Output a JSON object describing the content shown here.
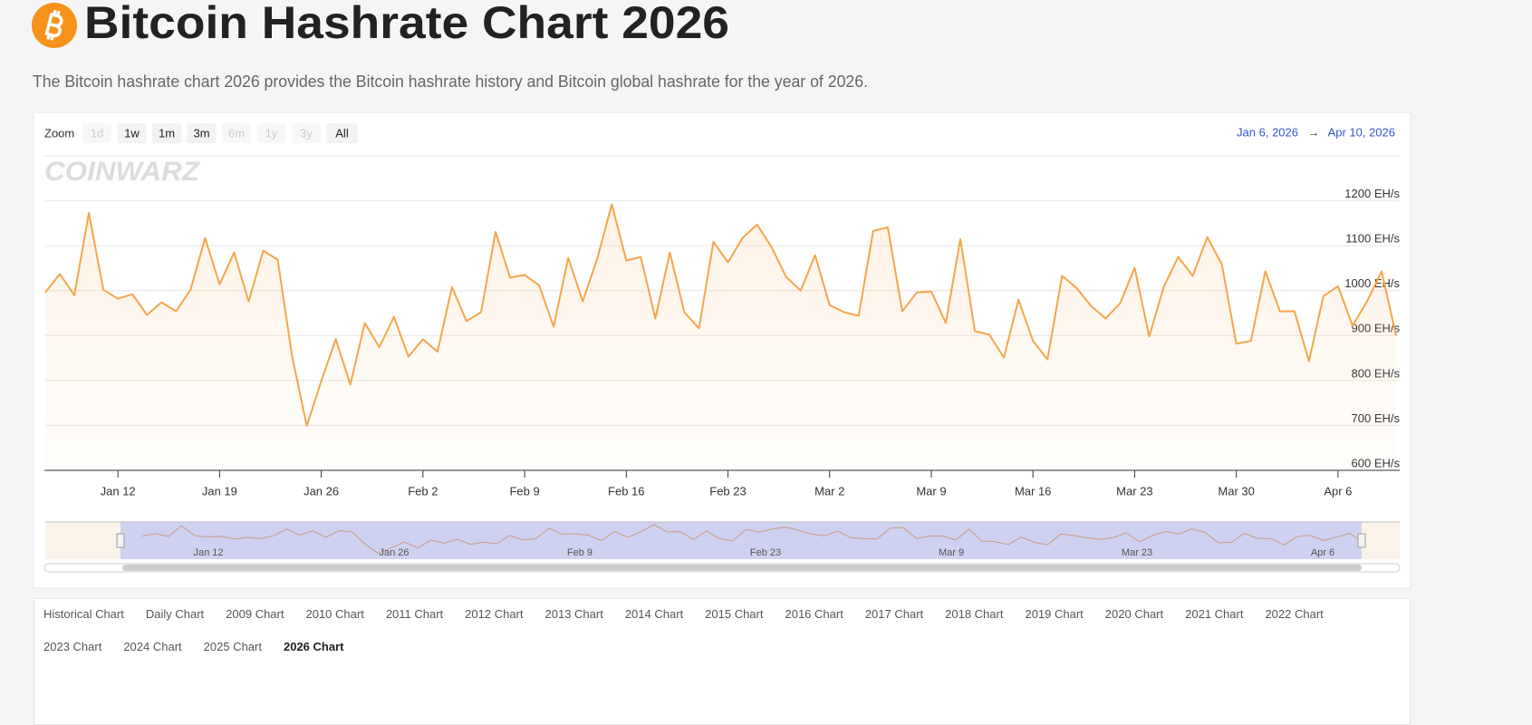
{
  "header": {
    "title": "Bitcoin Hashrate Chart 2026",
    "description": "The Bitcoin hashrate chart 2026 provides the Bitcoin hashrate history and Bitcoin global hashrate for the year of 2026."
  },
  "range_selector": {
    "label": "Zoom",
    "buttons": [
      {
        "label": "1d",
        "enabled": false
      },
      {
        "label": "1w",
        "enabled": true
      },
      {
        "label": "1m",
        "enabled": true
      },
      {
        "label": "3m",
        "enabled": true
      },
      {
        "label": "6m",
        "enabled": false
      },
      {
        "label": "1y",
        "enabled": false
      },
      {
        "label": "3y",
        "enabled": false
      },
      {
        "label": "All",
        "enabled": true
      }
    ],
    "from": "Jan 6, 2026",
    "arrow": "→",
    "to": "Apr 10, 2026"
  },
  "watermark": "COINWARZ",
  "chart_data": {
    "type": "line",
    "color": "#f5a54a",
    "x": [
      "2026-01-07",
      "2026-01-08",
      "2026-01-09",
      "2026-01-10",
      "2026-01-11",
      "2026-01-12",
      "2026-01-13",
      "2026-01-14",
      "2026-01-15",
      "2026-01-16",
      "2026-01-17",
      "2026-01-18",
      "2026-01-19",
      "2026-01-20",
      "2026-01-21",
      "2026-01-22",
      "2026-01-23",
      "2026-01-24",
      "2026-01-25",
      "2026-01-26",
      "2026-01-27",
      "2026-01-28",
      "2026-01-29",
      "2026-01-30",
      "2026-01-31",
      "2026-02-01",
      "2026-02-02",
      "2026-02-03",
      "2026-02-04",
      "2026-02-05",
      "2026-02-06",
      "2026-02-07",
      "2026-02-08",
      "2026-02-09",
      "2026-02-10",
      "2026-02-11",
      "2026-02-12",
      "2026-02-13",
      "2026-02-14",
      "2026-02-15",
      "2026-02-16",
      "2026-02-17",
      "2026-02-18",
      "2026-02-19",
      "2026-02-20",
      "2026-02-21",
      "2026-02-22",
      "2026-02-23",
      "2026-02-24",
      "2026-02-25",
      "2026-02-26",
      "2026-02-27",
      "2026-02-28",
      "2026-03-01",
      "2026-03-02",
      "2026-03-03",
      "2026-03-04",
      "2026-03-05",
      "2026-03-06",
      "2026-03-07",
      "2026-03-08",
      "2026-03-09",
      "2026-03-10",
      "2026-03-11",
      "2026-03-12",
      "2026-03-13",
      "2026-03-14",
      "2026-03-15",
      "2026-03-16",
      "2026-03-17",
      "2026-03-18",
      "2026-03-19",
      "2026-03-20",
      "2026-03-21",
      "2026-03-22",
      "2026-03-23",
      "2026-03-24",
      "2026-03-25",
      "2026-03-26",
      "2026-03-27",
      "2026-03-28",
      "2026-03-29",
      "2026-03-30",
      "2026-03-31",
      "2026-04-01",
      "2026-04-02",
      "2026-04-03",
      "2026-04-04",
      "2026-04-05",
      "2026-04-06",
      "2026-04-07",
      "2026-04-08",
      "2026-04-09",
      "2026-04-10"
    ],
    "values": [
      996,
      1037,
      990,
      1173,
      1002,
      982,
      992,
      946,
      974,
      954,
      1002,
      1117,
      1014,
      1085,
      976,
      1089,
      1069,
      853,
      699,
      799,
      892,
      791,
      928,
      874,
      942,
      853,
      892,
      864,
      1008,
      932,
      952,
      1131,
      1029,
      1035,
      1012,
      920,
      1073,
      976,
      1071,
      1192,
      1067,
      1075,
      938,
      1085,
      952,
      916,
      1109,
      1063,
      1117,
      1147,
      1097,
      1031,
      1000,
      1079,
      968,
      952,
      944,
      1133,
      1141,
      954,
      996,
      998,
      928,
      1115,
      910,
      902,
      851,
      980,
      888,
      847,
      1033,
      1006,
      966,
      938,
      972,
      1051,
      898,
      1008,
      1075,
      1033,
      1119,
      1059,
      882,
      888,
      1043,
      954,
      954,
      843,
      988,
      1010,
      922,
      976,
      1043,
      900
    ],
    "xlim": [
      "2026-01-07",
      "2026-04-10"
    ],
    "xticks": [
      {
        "value": "2026-01-12",
        "label": "Jan 12"
      },
      {
        "value": "2026-01-19",
        "label": "Jan 19"
      },
      {
        "value": "2026-01-26",
        "label": "Jan 26"
      },
      {
        "value": "2026-02-02",
        "label": "Feb 2"
      },
      {
        "value": "2026-02-09",
        "label": "Feb 9"
      },
      {
        "value": "2026-02-16",
        "label": "Feb 16"
      },
      {
        "value": "2026-02-23",
        "label": "Feb 23"
      },
      {
        "value": "2026-03-02",
        "label": "Mar 2"
      },
      {
        "value": "2026-03-09",
        "label": "Mar 9"
      },
      {
        "value": "2026-03-16",
        "label": "Mar 16"
      },
      {
        "value": "2026-03-23",
        "label": "Mar 23"
      },
      {
        "value": "2026-03-30",
        "label": "Mar 30"
      },
      {
        "value": "2026-04-06",
        "label": "Apr 6"
      }
    ],
    "ylim": [
      600,
      1300
    ],
    "yticks": [
      {
        "value": 600,
        "label": "600 EH/s"
      },
      {
        "value": 700,
        "label": "700 EH/s"
      },
      {
        "value": 800,
        "label": "800 EH/s"
      },
      {
        "value": 900,
        "label": "900 EH/s"
      },
      {
        "value": 1000,
        "label": "1000 EH/s"
      },
      {
        "value": 1100,
        "label": "1100 EH/s"
      },
      {
        "value": 1200,
        "label": "1200 EH/s"
      }
    ],
    "grid": true
  },
  "navigator": {
    "labels": [
      "Jan 12",
      "Jan 26",
      "Feb 9",
      "Feb 23",
      "Mar 9",
      "Mar 23",
      "Apr 6"
    ]
  },
  "links": {
    "items": [
      "Historical Chart",
      "Daily Chart",
      "2009 Chart",
      "2010 Chart",
      "2011 Chart",
      "2012 Chart",
      "2013 Chart",
      "2014 Chart",
      "2015 Chart",
      "2016 Chart",
      "2017 Chart",
      "2018 Chart",
      "2019 Chart",
      "2020 Chart",
      "2021 Chart",
      "2022 Chart",
      "2023 Chart",
      "2024 Chart",
      "2025 Chart",
      "2026 Chart"
    ],
    "active_index": 19
  }
}
